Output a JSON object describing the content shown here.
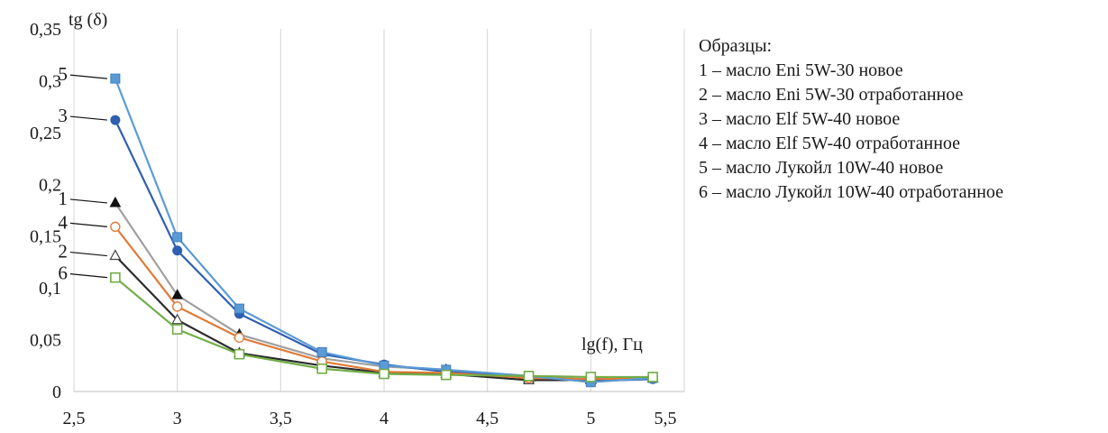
{
  "chart_data": {
    "type": "line",
    "ylabel": "tg (δ)",
    "xlabel": "lg(f), Гц",
    "xlim": [
      2.5,
      5.5
    ],
    "ylim": [
      0,
      0.35
    ],
    "x_ticks": [
      "2,5",
      "3",
      "3,5",
      "4",
      "4,5",
      "5",
      "5,5"
    ],
    "y_ticks": [
      "0",
      "0,05",
      "0,1",
      "0,15",
      "0,2",
      "0,25",
      "0,3",
      "0,35"
    ],
    "grid": "vertical",
    "series": [
      {
        "name": "1",
        "color": "#a0a0a0",
        "marker": "triangle-filled",
        "x": [
          2.7,
          3.0,
          3.3,
          3.7,
          4.0,
          4.3,
          4.7,
          5.0,
          5.3
        ],
        "y": [
          0.182,
          0.093,
          0.055,
          0.032,
          0.024,
          0.021,
          0.013,
          0.012,
          0.013
        ]
      },
      {
        "name": "2",
        "color": "#2b2b2b",
        "marker": "triangle-open",
        "x": [
          2.7,
          3.0,
          3.3,
          3.7,
          4.0,
          4.3,
          4.7,
          5.0,
          5.3
        ],
        "y": [
          0.131,
          0.069,
          0.037,
          0.025,
          0.018,
          0.017,
          0.011,
          0.011,
          0.013
        ]
      },
      {
        "name": "3",
        "color": "#2f5fb0",
        "marker": "circle-filled",
        "x": [
          2.7,
          3.0,
          3.3,
          3.7,
          4.0,
          4.3,
          4.7,
          5.0,
          5.3
        ],
        "y": [
          0.262,
          0.136,
          0.075,
          0.036,
          0.026,
          0.019,
          0.014,
          0.01,
          0.012
        ]
      },
      {
        "name": "4",
        "color": "#e07b39",
        "marker": "circle-open",
        "x": [
          2.7,
          3.0,
          3.3,
          3.7,
          4.0,
          4.3,
          4.7,
          5.0,
          5.3
        ],
        "y": [
          0.159,
          0.082,
          0.052,
          0.029,
          0.019,
          0.018,
          0.013,
          0.012,
          0.013
        ]
      },
      {
        "name": "5",
        "color": "#5b9bd5",
        "marker": "square-filled",
        "x": [
          2.7,
          3.0,
          3.3,
          3.7,
          4.0,
          4.3,
          4.7,
          5.0,
          5.3
        ],
        "y": [
          0.302,
          0.149,
          0.08,
          0.038,
          0.025,
          0.021,
          0.015,
          0.009,
          0.013
        ]
      },
      {
        "name": "6",
        "color": "#70ad47",
        "marker": "square-open",
        "x": [
          2.7,
          3.0,
          3.3,
          3.7,
          4.0,
          4.3,
          4.7,
          5.0,
          5.3
        ],
        "y": [
          0.11,
          0.06,
          0.036,
          0.022,
          0.017,
          0.016,
          0.015,
          0.014,
          0.014
        ]
      }
    ]
  },
  "legend": {
    "title": "Образцы:",
    "items": [
      "1 – масло Eni 5W-30 новое",
      "2 – масло Eni 5W-30 отработанное",
      "3 – масло Elf 5W-40 новое",
      "4 – масло Elf 5W-40 отработанное",
      "5 – масло Лукойл 10W-40 новое",
      "6 – масло Лукойл 10W-40 отработанное"
    ]
  }
}
